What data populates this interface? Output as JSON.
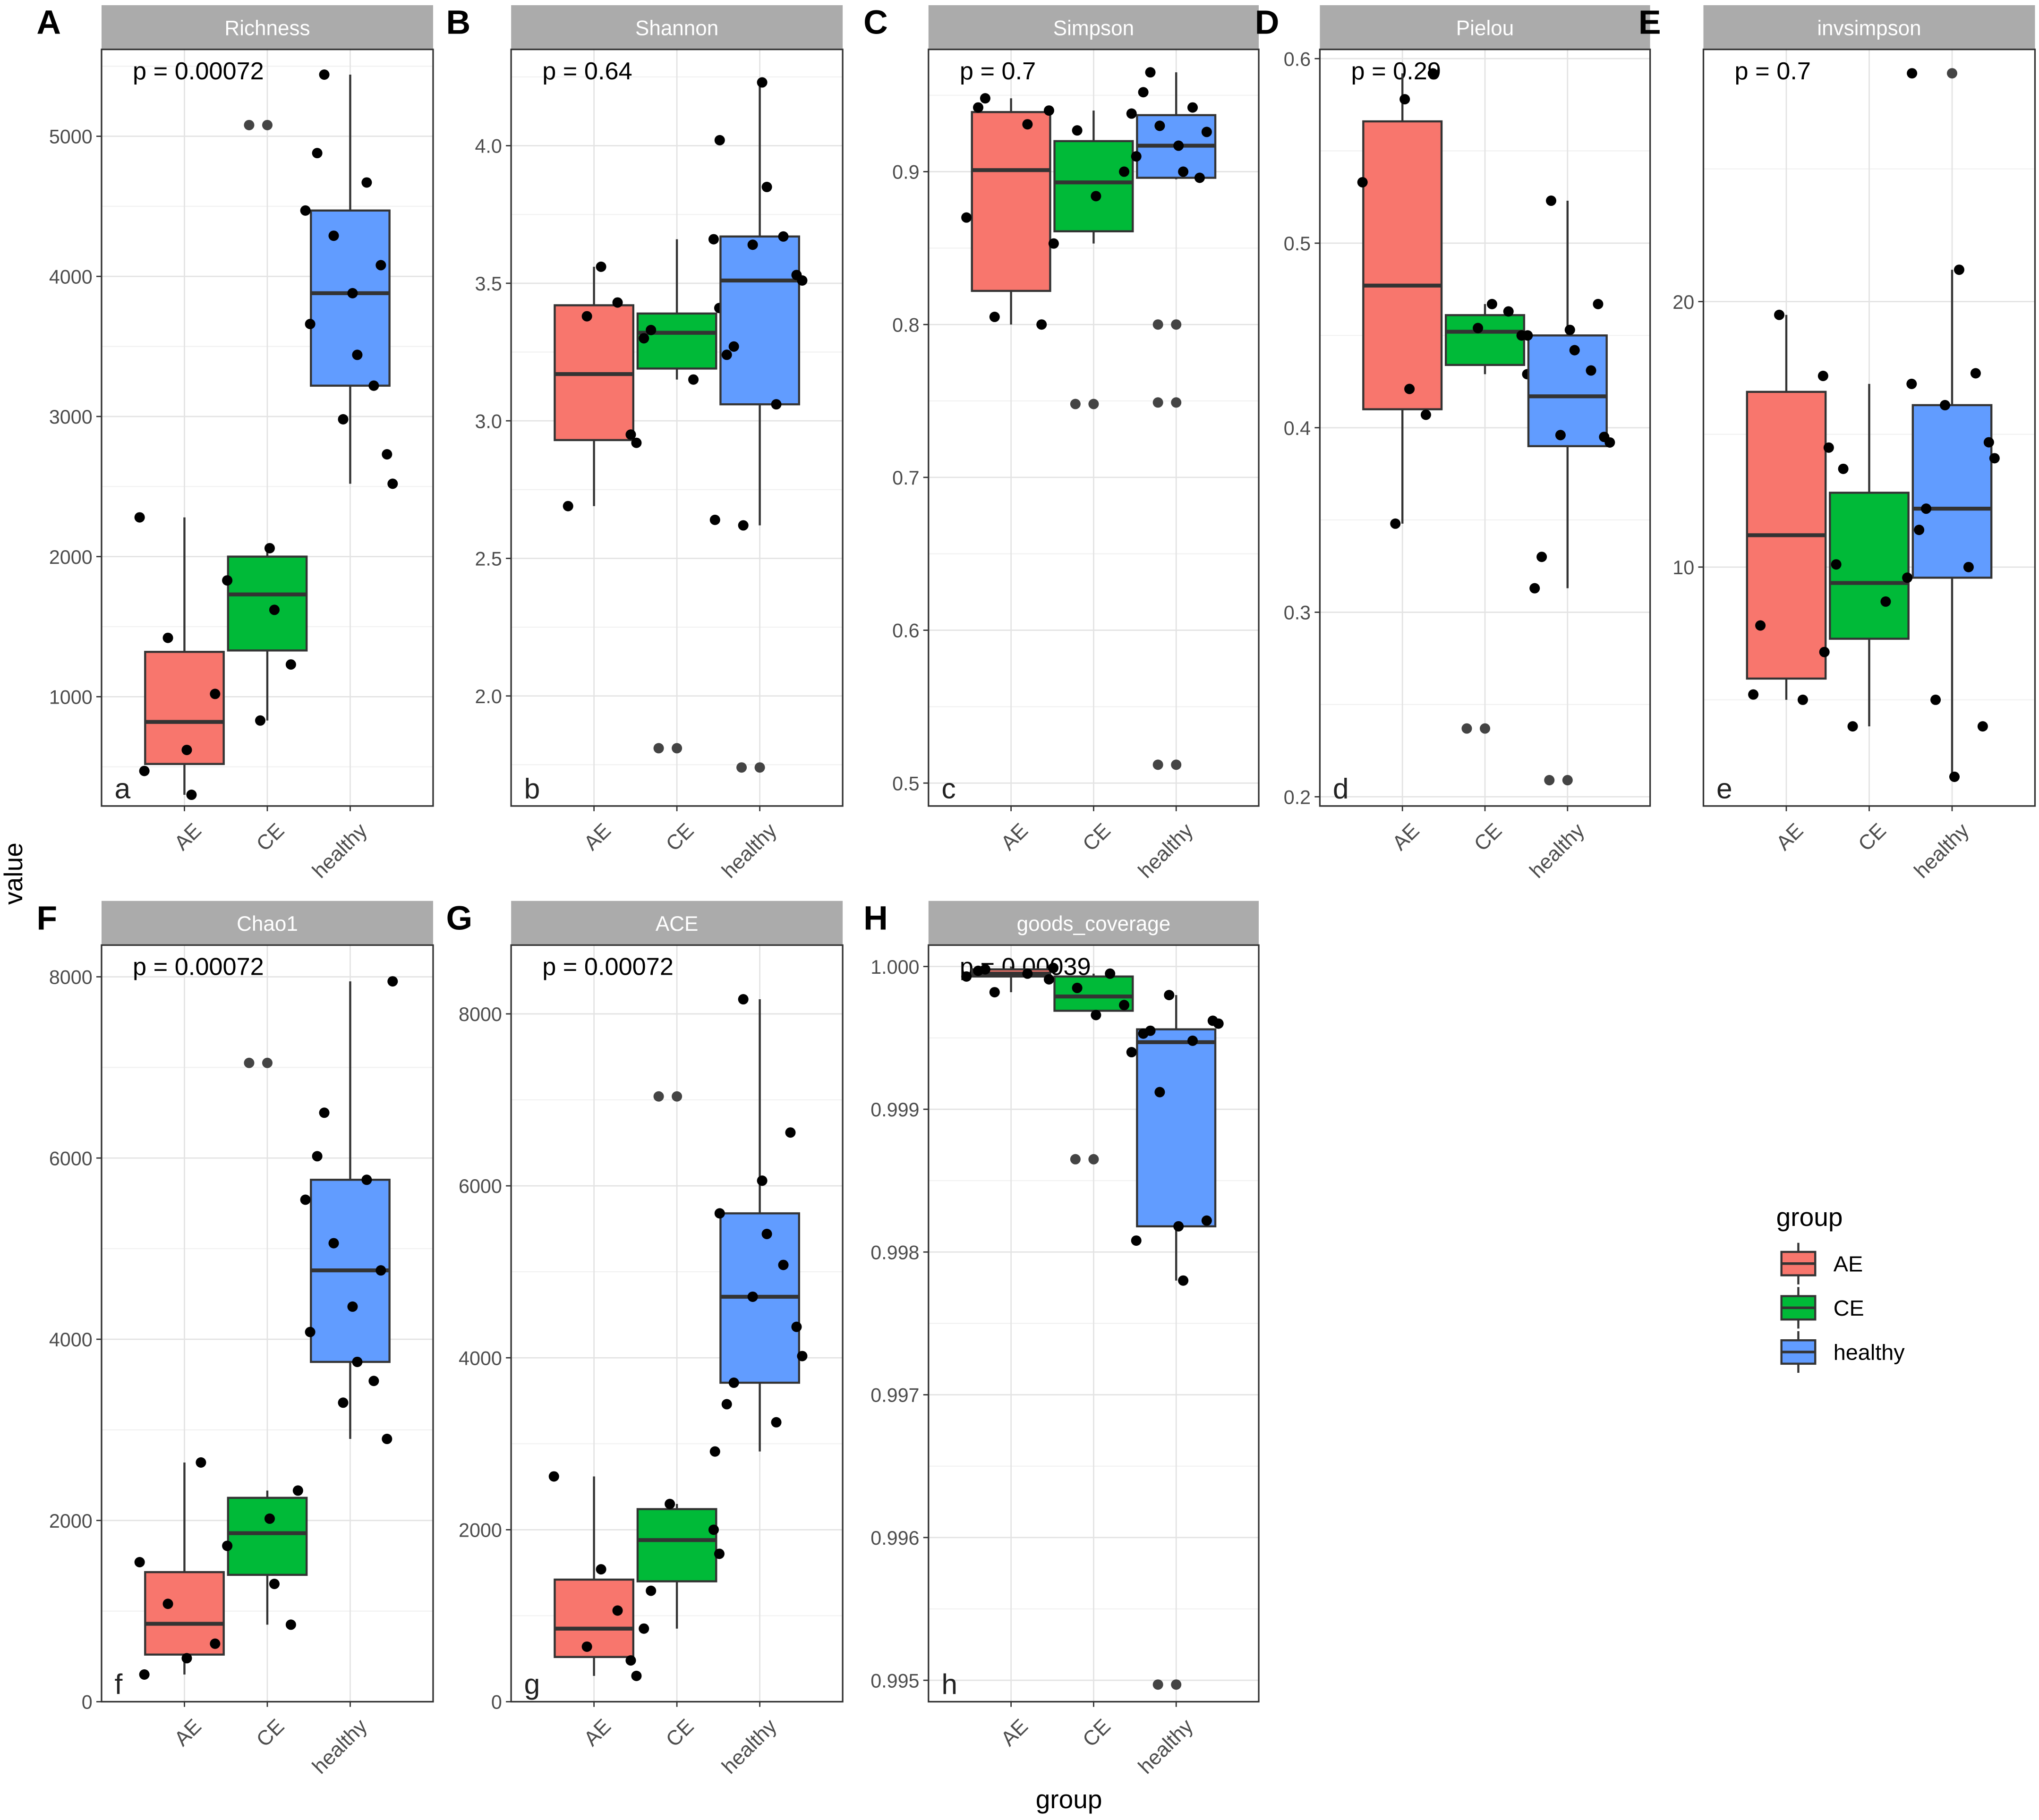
{
  "figure": {
    "y_axis_label": "value",
    "x_axis_label": "group",
    "groups": [
      "AE",
      "CE",
      "healthy"
    ]
  },
  "legend": {
    "title": "group",
    "items": [
      {
        "label": "AE",
        "color": "#F8766D"
      },
      {
        "label": "CE",
        "color": "#00BA38"
      },
      {
        "label": "healthy",
        "color": "#619CFF"
      }
    ]
  },
  "chart_data": [
    {
      "type": "box",
      "panel_letter": "A",
      "corner_letter": "a",
      "title": "Richness",
      "pvalue": "p = 0.00072",
      "ylim": [
        220,
        5620
      ],
      "yticks": [
        1000,
        2000,
        3000,
        4000,
        5000
      ],
      "ytick_labels": [
        "1000",
        "2000",
        "3000",
        "4000",
        "5000"
      ],
      "groups": [
        {
          "name": "AE",
          "min": 300,
          "q1": 520,
          "median": 820,
          "q3": 1320,
          "max": 2280,
          "points": [
            300,
            470,
            620,
            1020,
            1420,
            2280
          ],
          "outliers": []
        },
        {
          "name": "CE",
          "min": 830,
          "q1": 1330,
          "median": 1730,
          "q3": 2000,
          "max": 2060,
          "points": [
            830,
            1230,
            1620,
            1830,
            2060
          ],
          "outliers": [
            5080,
            5080
          ]
        },
        {
          "name": "healthy",
          "min": 2520,
          "q1": 3220,
          "median": 3880,
          "q3": 4470,
          "max": 5440,
          "points": [
            2520,
            2730,
            2980,
            3220,
            3440,
            3660,
            3880,
            4080,
            4290,
            4470,
            4670,
            4880,
            5440
          ],
          "outliers": []
        }
      ]
    },
    {
      "type": "box",
      "panel_letter": "B",
      "corner_letter": "b",
      "title": "Shannon",
      "pvalue": "p = 0.64",
      "ylim": [
        1.6,
        4.35
      ],
      "yticks": [
        2.0,
        2.5,
        3.0,
        3.5,
        4.0
      ],
      "ytick_labels": [
        "2.0",
        "2.5",
        "3.0",
        "3.5",
        "4.0"
      ],
      "groups": [
        {
          "name": "AE",
          "min": 2.69,
          "q1": 2.93,
          "median": 3.17,
          "q3": 3.42,
          "max": 3.56,
          "points": [
            2.69,
            2.92,
            2.95,
            3.38,
            3.43,
            3.56
          ],
          "outliers": []
        },
        {
          "name": "CE",
          "min": 3.15,
          "q1": 3.19,
          "median": 3.32,
          "q3": 3.39,
          "max": 3.66,
          "points": [
            3.15,
            3.3,
            3.33,
            3.41,
            3.66
          ],
          "outliers": [
            1.81,
            1.81
          ]
        },
        {
          "name": "healthy",
          "min": 2.62,
          "q1": 3.06,
          "median": 3.51,
          "q3": 3.67,
          "max": 4.23,
          "points": [
            2.62,
            2.64,
            3.06,
            3.24,
            3.27,
            3.51,
            3.53,
            3.64,
            3.67,
            3.85,
            4.02,
            4.23
          ],
          "outliers": [
            1.74,
            1.74
          ]
        }
      ]
    },
    {
      "type": "box",
      "panel_letter": "C",
      "corner_letter": "c",
      "title": "Simpson",
      "pvalue": "p = 0.7",
      "ylim": [
        0.485,
        0.98
      ],
      "yticks": [
        0.5,
        0.6,
        0.7,
        0.8,
        0.9
      ],
      "ytick_labels": [
        "0.5",
        "0.6",
        "0.7",
        "0.8",
        "0.9"
      ],
      "groups": [
        {
          "name": "AE",
          "min": 0.8,
          "q1": 0.822,
          "median": 0.901,
          "q3": 0.939,
          "max": 0.948,
          "points": [
            0.8,
            0.805,
            0.87,
            0.931,
            0.942,
            0.948
          ],
          "outliers": []
        },
        {
          "name": "CE",
          "min": 0.853,
          "q1": 0.861,
          "median": 0.893,
          "q3": 0.92,
          "max": 0.94,
          "points": [
            0.853,
            0.884,
            0.9,
            0.927,
            0.94
          ],
          "outliers": [
            0.748,
            0.748
          ]
        },
        {
          "name": "healthy",
          "min": 0.895,
          "q1": 0.896,
          "median": 0.917,
          "q3": 0.937,
          "max": 0.965,
          "points": [
            0.896,
            0.9,
            0.91,
            0.917,
            0.926,
            0.93,
            0.938,
            0.942,
            0.952,
            0.965
          ],
          "outliers": [
            0.512,
            0.512,
            0.749,
            0.749,
            0.8,
            0.8
          ]
        }
      ]
    },
    {
      "type": "box",
      "panel_letter": "D",
      "corner_letter": "d",
      "title": "Pielou",
      "pvalue": "p = 0.29",
      "ylim": [
        0.195,
        0.605
      ],
      "yticks": [
        0.2,
        0.3,
        0.4,
        0.5,
        0.6
      ],
      "ytick_labels": [
        "0.2",
        "0.3",
        "0.4",
        "0.5",
        "0.6"
      ],
      "groups": [
        {
          "name": "AE",
          "min": 0.348,
          "q1": 0.41,
          "median": 0.477,
          "q3": 0.566,
          "max": 0.592,
          "points": [
            0.348,
            0.407,
            0.421,
            0.533,
            0.578,
            0.592
          ],
          "outliers": []
        },
        {
          "name": "CE",
          "min": 0.429,
          "q1": 0.434,
          "median": 0.452,
          "q3": 0.461,
          "max": 0.467,
          "points": [
            0.429,
            0.45,
            0.454,
            0.463,
            0.467
          ],
          "outliers": [
            0.237,
            0.237
          ]
        },
        {
          "name": "healthy",
          "min": 0.313,
          "q1": 0.39,
          "median": 0.417,
          "q3": 0.45,
          "max": 0.523,
          "points": [
            0.313,
            0.33,
            0.392,
            0.395,
            0.396,
            0.431,
            0.442,
            0.45,
            0.453,
            0.467,
            0.523
          ],
          "outliers": [
            0.209,
            0.209
          ]
        }
      ]
    },
    {
      "type": "box",
      "panel_letter": "E",
      "corner_letter": "e",
      "title": "invsimpson",
      "pvalue": "p = 0.7",
      "ylim": [
        1.0,
        29.5
      ],
      "yticks": [
        10,
        20
      ],
      "ytick_labels": [
        "10",
        "20"
      ],
      "groups": [
        {
          "name": "AE",
          "min": 5.0,
          "q1": 5.8,
          "median": 11.2,
          "q3": 16.6,
          "max": 19.5,
          "points": [
            5.0,
            5.2,
            7.8,
            14.5,
            17.2,
            19.5
          ],
          "outliers": []
        },
        {
          "name": "CE",
          "min": 4.0,
          "q1": 7.3,
          "median": 9.4,
          "q3": 12.8,
          "max": 16.9,
          "points": [
            4.0,
            6.8,
            8.7,
            10.1,
            13.7,
            16.9
          ],
          "outliers": []
        },
        {
          "name": "healthy",
          "min": 2.1,
          "q1": 9.6,
          "median": 12.2,
          "q3": 16.1,
          "max": 21.2,
          "points": [
            2.1,
            4.0,
            5.0,
            9.6,
            10.0,
            11.4,
            12.2,
            14.1,
            14.7,
            16.1,
            17.3,
            21.2,
            28.6
          ],
          "outliers": [
            28.6
          ]
        }
      ]
    },
    {
      "type": "box",
      "panel_letter": "F",
      "corner_letter": "f",
      "title": "Chao1",
      "pvalue": "p = 0.00072",
      "ylim": [
        0,
        8350
      ],
      "yticks": [
        0,
        2000,
        4000,
        6000,
        8000
      ],
      "ytick_labels": [
        "0",
        "2000",
        "4000",
        "6000",
        "8000"
      ],
      "groups": [
        {
          "name": "AE",
          "min": 300,
          "q1": 520,
          "median": 860,
          "q3": 1430,
          "max": 2640,
          "points": [
            300,
            480,
            640,
            1080,
            1540,
            2640
          ],
          "outliers": []
        },
        {
          "name": "CE",
          "min": 850,
          "q1": 1400,
          "median": 1860,
          "q3": 2250,
          "max": 2330,
          "points": [
            850,
            1300,
            1720,
            2020,
            2330
          ],
          "outliers": [
            7050,
            7050
          ]
        },
        {
          "name": "healthy",
          "min": 2900,
          "q1": 3750,
          "median": 4760,
          "q3": 5760,
          "max": 7950,
          "points": [
            2900,
            3300,
            3540,
            3750,
            4080,
            4360,
            4760,
            5060,
            5540,
            5760,
            6020,
            6500,
            7950
          ],
          "outliers": []
        }
      ]
    },
    {
      "type": "box",
      "panel_letter": "G",
      "corner_letter": "g",
      "title": "ACE",
      "pvalue": "p = 0.00072",
      "ylim": [
        0,
        8800
      ],
      "yticks": [
        0,
        2000,
        4000,
        6000,
        8000
      ],
      "ytick_labels": [
        "0",
        "2000",
        "4000",
        "6000",
        "8000"
      ],
      "groups": [
        {
          "name": "AE",
          "min": 300,
          "q1": 520,
          "median": 850,
          "q3": 1420,
          "max": 2620,
          "points": [
            300,
            480,
            640,
            1060,
            1540,
            2620
          ],
          "outliers": []
        },
        {
          "name": "CE",
          "min": 850,
          "q1": 1400,
          "median": 1880,
          "q3": 2240,
          "max": 2300,
          "points": [
            850,
            1290,
            1720,
            2000,
            2300
          ],
          "outliers": [
            7040,
            7040
          ]
        },
        {
          "name": "healthy",
          "min": 2910,
          "q1": 3710,
          "median": 4710,
          "q3": 5680,
          "max": 8170,
          "points": [
            2910,
            3250,
            3460,
            3710,
            4020,
            4360,
            4710,
            5080,
            5440,
            5680,
            6060,
            6620,
            8170
          ],
          "outliers": []
        }
      ]
    },
    {
      "type": "box",
      "panel_letter": "H",
      "corner_letter": "h",
      "title": "goods_coverage",
      "pvalue": "p = 0.00039",
      "ylim": [
        0.99485,
        1.00015
      ],
      "yticks": [
        0.995,
        0.996,
        0.997,
        0.998,
        0.999,
        1.0
      ],
      "ytick_labels": [
        "0.995",
        "0.996",
        "0.997",
        "0.998",
        "0.999",
        "1.000"
      ],
      "groups": [
        {
          "name": "AE",
          "min": 0.99982,
          "q1": 0.99993,
          "median": 0.99995,
          "q3": 0.99998,
          "max": 1.0,
          "points": [
            0.99982,
            0.99993,
            0.99995,
            0.99997,
            0.99998,
            0.99999
          ],
          "outliers": []
        },
        {
          "name": "CE",
          "min": 0.99966,
          "q1": 0.99969,
          "median": 0.99979,
          "q3": 0.99993,
          "max": 0.99995,
          "points": [
            0.99966,
            0.99973,
            0.99985,
            0.99991,
            0.99995
          ],
          "outliers": [
            0.99865,
            0.99865
          ]
        },
        {
          "name": "healthy",
          "min": 0.9978,
          "q1": 0.99818,
          "median": 0.99947,
          "q3": 0.99956,
          "max": 0.9998,
          "points": [
            0.9978,
            0.99808,
            0.99818,
            0.99822,
            0.99912,
            0.9994,
            0.99948,
            0.99953,
            0.99955,
            0.9996,
            0.99962,
            0.9998
          ],
          "outliers": [
            0.99497,
            0.99497
          ]
        }
      ]
    }
  ]
}
